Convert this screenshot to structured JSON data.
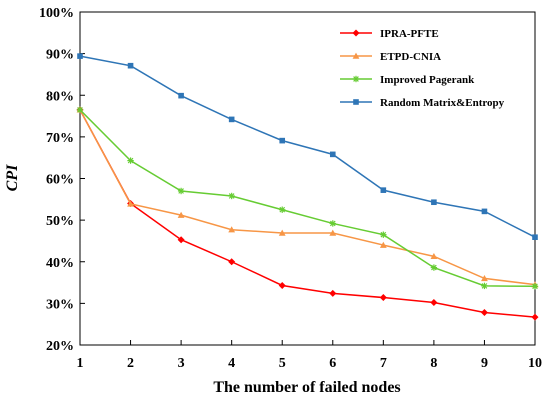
{
  "chart_data": {
    "type": "line",
    "xlabel": "The number of failed nodes",
    "ylabel": "CPI",
    "x": [
      1,
      2,
      3,
      4,
      5,
      6,
      7,
      8,
      9,
      10
    ],
    "xlim": [
      1,
      10
    ],
    "ylim": [
      20,
      100
    ],
    "yticks": [
      "20%",
      "30%",
      "40%",
      "50%",
      "60%",
      "70%",
      "80%",
      "90%",
      "100%"
    ],
    "xticks": [
      "1",
      "2",
      "3",
      "4",
      "5",
      "6",
      "7",
      "8",
      "9",
      "10"
    ],
    "grid": false,
    "legend_position": "top-right",
    "series": [
      {
        "name": "IPRA-PFTE",
        "color": "#ff0000",
        "marker": "diamond",
        "values": [
          76.5,
          54.0,
          45.3,
          40.0,
          34.3,
          32.4,
          31.4,
          30.2,
          27.8,
          26.7
        ]
      },
      {
        "name": "ETPD-CNIA",
        "color": "#f79646",
        "marker": "triangle",
        "values": [
          76.5,
          53.9,
          51.2,
          47.7,
          46.9,
          46.9,
          44.0,
          41.3,
          36.0,
          34.5
        ]
      },
      {
        "name": "Improved Pagerank",
        "color": "#66cc33",
        "marker": "star",
        "values": [
          76.5,
          64.3,
          57.0,
          55.8,
          52.5,
          49.2,
          46.5,
          38.6,
          34.2,
          34.1
        ]
      },
      {
        "name": "Random Matrix&Entropy",
        "color": "#2e75b6",
        "marker": "square",
        "values": [
          89.4,
          87.1,
          79.9,
          74.2,
          69.1,
          65.8,
          57.2,
          54.3,
          52.1,
          45.9
        ]
      }
    ]
  }
}
